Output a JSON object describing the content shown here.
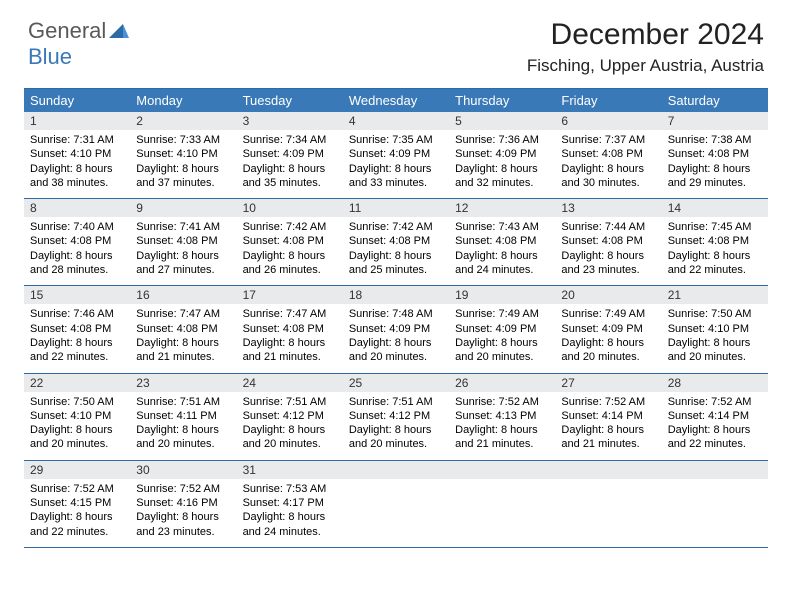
{
  "logo": {
    "text1": "General",
    "text2": "Blue",
    "mark_color": "#2e6aa6"
  },
  "title": "December 2024",
  "location": "Fisching, Upper Austria, Austria",
  "colors": {
    "header_bg": "#3a79b7",
    "daynum_bg": "#e9eaeb",
    "rule": "#2e6aa6",
    "text": "#000000"
  },
  "day_headers": [
    "Sunday",
    "Monday",
    "Tuesday",
    "Wednesday",
    "Thursday",
    "Friday",
    "Saturday"
  ],
  "weeks": [
    [
      {
        "n": "1",
        "lines": [
          "Sunrise: 7:31 AM",
          "Sunset: 4:10 PM",
          "Daylight: 8 hours",
          "and 38 minutes."
        ]
      },
      {
        "n": "2",
        "lines": [
          "Sunrise: 7:33 AM",
          "Sunset: 4:10 PM",
          "Daylight: 8 hours",
          "and 37 minutes."
        ]
      },
      {
        "n": "3",
        "lines": [
          "Sunrise: 7:34 AM",
          "Sunset: 4:09 PM",
          "Daylight: 8 hours",
          "and 35 minutes."
        ]
      },
      {
        "n": "4",
        "lines": [
          "Sunrise: 7:35 AM",
          "Sunset: 4:09 PM",
          "Daylight: 8 hours",
          "and 33 minutes."
        ]
      },
      {
        "n": "5",
        "lines": [
          "Sunrise: 7:36 AM",
          "Sunset: 4:09 PM",
          "Daylight: 8 hours",
          "and 32 minutes."
        ]
      },
      {
        "n": "6",
        "lines": [
          "Sunrise: 7:37 AM",
          "Sunset: 4:08 PM",
          "Daylight: 8 hours",
          "and 30 minutes."
        ]
      },
      {
        "n": "7",
        "lines": [
          "Sunrise: 7:38 AM",
          "Sunset: 4:08 PM",
          "Daylight: 8 hours",
          "and 29 minutes."
        ]
      }
    ],
    [
      {
        "n": "8",
        "lines": [
          "Sunrise: 7:40 AM",
          "Sunset: 4:08 PM",
          "Daylight: 8 hours",
          "and 28 minutes."
        ]
      },
      {
        "n": "9",
        "lines": [
          "Sunrise: 7:41 AM",
          "Sunset: 4:08 PM",
          "Daylight: 8 hours",
          "and 27 minutes."
        ]
      },
      {
        "n": "10",
        "lines": [
          "Sunrise: 7:42 AM",
          "Sunset: 4:08 PM",
          "Daylight: 8 hours",
          "and 26 minutes."
        ]
      },
      {
        "n": "11",
        "lines": [
          "Sunrise: 7:42 AM",
          "Sunset: 4:08 PM",
          "Daylight: 8 hours",
          "and 25 minutes."
        ]
      },
      {
        "n": "12",
        "lines": [
          "Sunrise: 7:43 AM",
          "Sunset: 4:08 PM",
          "Daylight: 8 hours",
          "and 24 minutes."
        ]
      },
      {
        "n": "13",
        "lines": [
          "Sunrise: 7:44 AM",
          "Sunset: 4:08 PM",
          "Daylight: 8 hours",
          "and 23 minutes."
        ]
      },
      {
        "n": "14",
        "lines": [
          "Sunrise: 7:45 AM",
          "Sunset: 4:08 PM",
          "Daylight: 8 hours",
          "and 22 minutes."
        ]
      }
    ],
    [
      {
        "n": "15",
        "lines": [
          "Sunrise: 7:46 AM",
          "Sunset: 4:08 PM",
          "Daylight: 8 hours",
          "and 22 minutes."
        ]
      },
      {
        "n": "16",
        "lines": [
          "Sunrise: 7:47 AM",
          "Sunset: 4:08 PM",
          "Daylight: 8 hours",
          "and 21 minutes."
        ]
      },
      {
        "n": "17",
        "lines": [
          "Sunrise: 7:47 AM",
          "Sunset: 4:08 PM",
          "Daylight: 8 hours",
          "and 21 minutes."
        ]
      },
      {
        "n": "18",
        "lines": [
          "Sunrise: 7:48 AM",
          "Sunset: 4:09 PM",
          "Daylight: 8 hours",
          "and 20 minutes."
        ]
      },
      {
        "n": "19",
        "lines": [
          "Sunrise: 7:49 AM",
          "Sunset: 4:09 PM",
          "Daylight: 8 hours",
          "and 20 minutes."
        ]
      },
      {
        "n": "20",
        "lines": [
          "Sunrise: 7:49 AM",
          "Sunset: 4:09 PM",
          "Daylight: 8 hours",
          "and 20 minutes."
        ]
      },
      {
        "n": "21",
        "lines": [
          "Sunrise: 7:50 AM",
          "Sunset: 4:10 PM",
          "Daylight: 8 hours",
          "and 20 minutes."
        ]
      }
    ],
    [
      {
        "n": "22",
        "lines": [
          "Sunrise: 7:50 AM",
          "Sunset: 4:10 PM",
          "Daylight: 8 hours",
          "and 20 minutes."
        ]
      },
      {
        "n": "23",
        "lines": [
          "Sunrise: 7:51 AM",
          "Sunset: 4:11 PM",
          "Daylight: 8 hours",
          "and 20 minutes."
        ]
      },
      {
        "n": "24",
        "lines": [
          "Sunrise: 7:51 AM",
          "Sunset: 4:12 PM",
          "Daylight: 8 hours",
          "and 20 minutes."
        ]
      },
      {
        "n": "25",
        "lines": [
          "Sunrise: 7:51 AM",
          "Sunset: 4:12 PM",
          "Daylight: 8 hours",
          "and 20 minutes."
        ]
      },
      {
        "n": "26",
        "lines": [
          "Sunrise: 7:52 AM",
          "Sunset: 4:13 PM",
          "Daylight: 8 hours",
          "and 21 minutes."
        ]
      },
      {
        "n": "27",
        "lines": [
          "Sunrise: 7:52 AM",
          "Sunset: 4:14 PM",
          "Daylight: 8 hours",
          "and 21 minutes."
        ]
      },
      {
        "n": "28",
        "lines": [
          "Sunrise: 7:52 AM",
          "Sunset: 4:14 PM",
          "Daylight: 8 hours",
          "and 22 minutes."
        ]
      }
    ],
    [
      {
        "n": "29",
        "lines": [
          "Sunrise: 7:52 AM",
          "Sunset: 4:15 PM",
          "Daylight: 8 hours",
          "and 22 minutes."
        ]
      },
      {
        "n": "30",
        "lines": [
          "Sunrise: 7:52 AM",
          "Sunset: 4:16 PM",
          "Daylight: 8 hours",
          "and 23 minutes."
        ]
      },
      {
        "n": "31",
        "lines": [
          "Sunrise: 7:53 AM",
          "Sunset: 4:17 PM",
          "Daylight: 8 hours",
          "and 24 minutes."
        ]
      },
      {
        "blank": true
      },
      {
        "blank": true
      },
      {
        "blank": true
      },
      {
        "blank": true
      }
    ]
  ]
}
